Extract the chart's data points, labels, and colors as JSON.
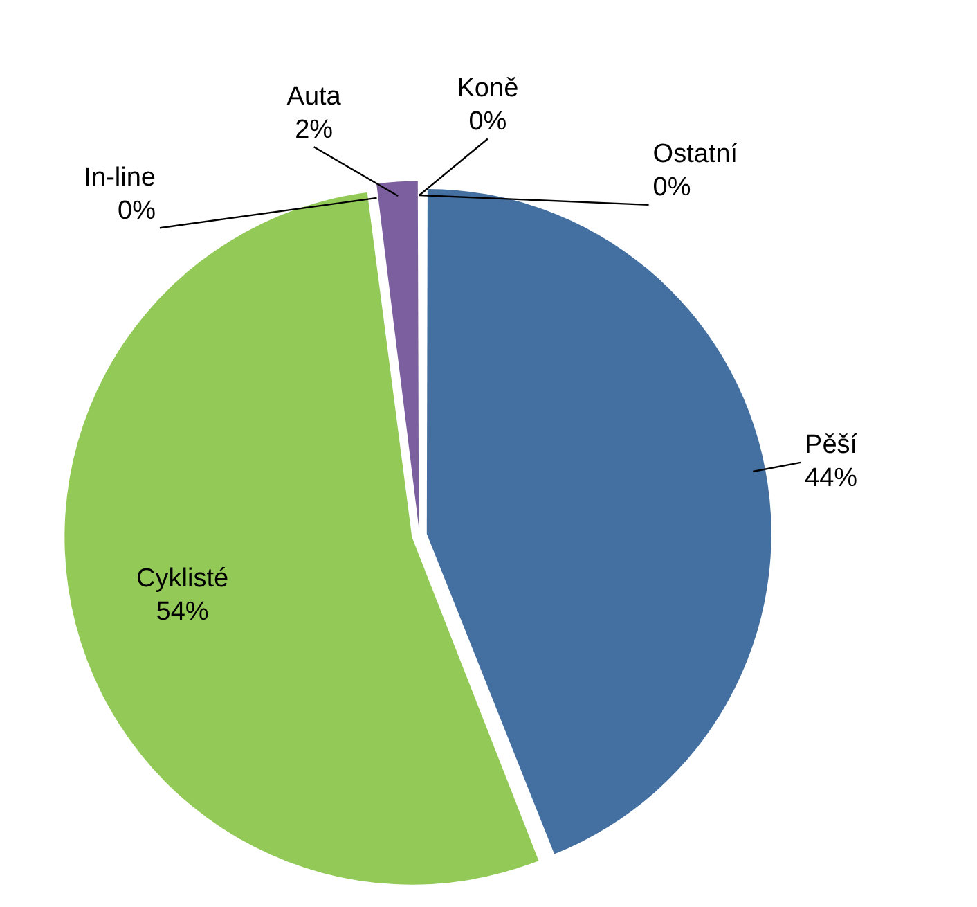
{
  "chart_data": {
    "type": "pie",
    "categories": [
      "Pěší",
      "Cyklisté",
      "In-line",
      "Auta",
      "Koně",
      "Ostatní"
    ],
    "values": [
      44,
      54,
      0,
      2,
      0,
      0
    ],
    "value_labels": [
      "44%",
      "54%",
      "0%",
      "2%",
      "0%",
      "0%"
    ],
    "colors": [
      "#4470a1",
      "#92c957",
      "#a0403e",
      "#7c5f9e",
      "#4bacc6",
      "#f79646"
    ],
    "legend": false
  }
}
